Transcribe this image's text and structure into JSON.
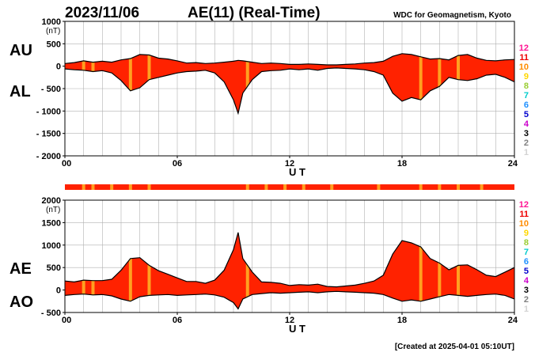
{
  "header": {
    "date": "2023/11/06",
    "title": "AE(11) (Real-Time)",
    "source": "WDC for Geomagnetism, Kyoto"
  },
  "footer": "[Created at 2025-04-01 05:10UT]",
  "colors": {
    "fill": "#ff2200",
    "stripe": "#ffa020",
    "line": "#000000",
    "grid": "#b0b0b0"
  },
  "key": [
    {
      "label": "12",
      "color": "#ff1493"
    },
    {
      "label": "11",
      "color": "#ee0000"
    },
    {
      "label": "10",
      "color": "#ff8c00"
    },
    {
      "label": "9",
      "color": "#ffd700"
    },
    {
      "label": "8",
      "color": "#9acd32"
    },
    {
      "label": "7",
      "color": "#00cccc"
    },
    {
      "label": "6",
      "color": "#1e90ff"
    },
    {
      "label": "5",
      "color": "#0000cd"
    },
    {
      "label": "4",
      "color": "#cc00cc"
    },
    {
      "label": "3",
      "color": "#000000"
    },
    {
      "label": "2",
      "color": "#808080"
    },
    {
      "label": "1",
      "color": "#d3d3d3"
    }
  ],
  "chart_data": [
    {
      "type": "area",
      "upper_label": "AU",
      "lower_label": "AL",
      "unit": "(nT)",
      "xlabel": "U T",
      "xlim": [
        0,
        24
      ],
      "xticks": [
        "00",
        "06",
        "12",
        "18",
        "24"
      ],
      "ylim": [
        -2000,
        1000
      ],
      "yticks": [
        {
          "value": 1000,
          "label": "1000"
        },
        {
          "value": 500,
          "label": "500"
        },
        {
          "value": 0,
          "label": "0"
        },
        {
          "value": -500,
          "label": "- 500"
        },
        {
          "value": -1000,
          "label": "- 1000"
        },
        {
          "value": -1500,
          "label": "- 1500"
        },
        {
          "value": -2000,
          "label": "- 2000"
        }
      ],
      "grid": true,
      "x": [
        0,
        0.5,
        1,
        1.5,
        2,
        2.5,
        3,
        3.5,
        4,
        4.5,
        5,
        5.5,
        6,
        6.5,
        7,
        7.5,
        8,
        8.5,
        9,
        9.25,
        9.5,
        10,
        10.5,
        11,
        11.5,
        12,
        12.5,
        13,
        13.5,
        14,
        14.5,
        15,
        15.5,
        16,
        16.5,
        17,
        17.5,
        18,
        18.5,
        19,
        19.5,
        20,
        20.5,
        21,
        21.5,
        22,
        22.5,
        23,
        23.5,
        24
      ],
      "au": [
        60,
        80,
        120,
        90,
        110,
        90,
        140,
        170,
        260,
        250,
        180,
        160,
        120,
        70,
        80,
        60,
        70,
        90,
        110,
        130,
        120,
        90,
        60,
        70,
        60,
        40,
        40,
        50,
        40,
        30,
        30,
        40,
        50,
        70,
        80,
        110,
        220,
        280,
        260,
        210,
        160,
        170,
        140,
        240,
        260,
        180,
        130,
        120,
        140,
        150
      ],
      "al": [
        -60,
        -80,
        -90,
        -120,
        -100,
        -150,
        -320,
        -550,
        -480,
        -300,
        -250,
        -200,
        -150,
        -120,
        -110,
        -90,
        -150,
        -350,
        -750,
        -1050,
        -600,
        -300,
        -120,
        -100,
        -90,
        -60,
        -80,
        -60,
        -90,
        -50,
        -40,
        -50,
        -60,
        -80,
        -120,
        -200,
        -600,
        -780,
        -700,
        -750,
        -550,
        -450,
        -250,
        -300,
        -320,
        -280,
        -200,
        -180,
        -250,
        -350
      ],
      "stripes": [
        1.0,
        1.5,
        3.5,
        4.5,
        9.75,
        19.0,
        20.0,
        21.0
      ]
    },
    {
      "type": "area",
      "upper_label": "AE",
      "lower_label": "AO",
      "unit": "(nT)",
      "xlabel": "U T",
      "xlim": [
        0,
        24
      ],
      "xticks": [
        "00",
        "06",
        "12",
        "18",
        "24"
      ],
      "ylim": [
        -500,
        2000
      ],
      "yticks": [
        {
          "value": 2000,
          "label": "2000"
        },
        {
          "value": 1500,
          "label": "1500"
        },
        {
          "value": 1000,
          "label": "1000"
        },
        {
          "value": 500,
          "label": "500"
        },
        {
          "value": 0,
          "label": "0"
        },
        {
          "value": -500,
          "label": "- 500"
        }
      ],
      "grid": true,
      "x": [
        0,
        0.5,
        1,
        1.5,
        2,
        2.5,
        3,
        3.5,
        4,
        4.5,
        5,
        5.5,
        6,
        6.5,
        7,
        7.5,
        8,
        8.5,
        9,
        9.25,
        9.5,
        10,
        10.5,
        11,
        11.5,
        12,
        12.5,
        13,
        13.5,
        14,
        14.5,
        15,
        15.5,
        16,
        16.5,
        17,
        17.5,
        18,
        18.5,
        19,
        19.5,
        20,
        20.5,
        21,
        21.5,
        22,
        22.5,
        23,
        23.5,
        24
      ],
      "ae": [
        200,
        180,
        220,
        210,
        210,
        240,
        440,
        700,
        720,
        550,
        430,
        350,
        270,
        190,
        190,
        150,
        220,
        440,
        900,
        1280,
        700,
        400,
        180,
        170,
        150,
        100,
        120,
        110,
        130,
        80,
        70,
        90,
        110,
        150,
        200,
        330,
        800,
        1100,
        1050,
        960,
        700,
        600,
        450,
        550,
        560,
        450,
        330,
        300,
        400,
        500
      ],
      "ao": [
        -120,
        -100,
        -90,
        -110,
        -100,
        -130,
        -200,
        -250,
        -150,
        -120,
        -110,
        -100,
        -120,
        -110,
        -100,
        -90,
        -110,
        -160,
        -280,
        -420,
        -200,
        -100,
        -80,
        -60,
        -70,
        -60,
        -50,
        -40,
        -60,
        -40,
        -30,
        -40,
        -50,
        -60,
        -70,
        -100,
        -180,
        -250,
        -220,
        -250,
        -200,
        -150,
        -100,
        -120,
        -140,
        -120,
        -100,
        -90,
        -120,
        -200
      ],
      "stripes": [
        1.0,
        1.5,
        3.5,
        4.5,
        9.75,
        19.0,
        20.0,
        21.0
      ]
    }
  ],
  "index_bar": {
    "stripes": [
      1.0,
      1.5,
      2.5,
      3.5,
      4.5,
      9.75,
      10.75,
      11.75,
      12.75,
      14.25,
      16.75,
      19.0,
      20.0,
      21.0,
      22.25
    ]
  }
}
